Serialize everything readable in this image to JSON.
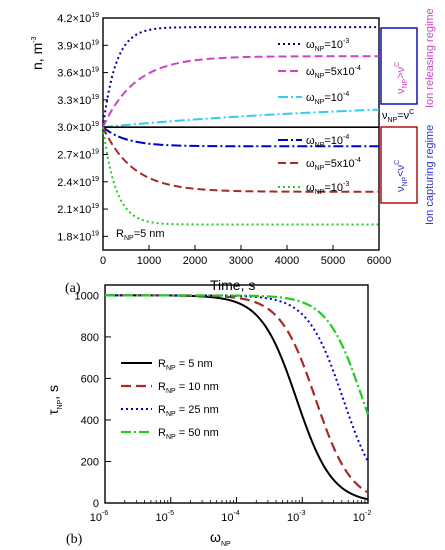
{
  "panel_labels": {
    "a": "(a)",
    "b": "(b)"
  },
  "colors": {
    "black": "#000000",
    "navy": "#00008b",
    "magenta": "#cc44cc",
    "cyan": "#33ccee",
    "blue": "#0000cc",
    "brown": "#a52a2a",
    "green": "#22cc22",
    "releasing": "#cc44cc",
    "capturing": "#3333cc",
    "box_navy": "#0000aa",
    "box_red": "#aa0000"
  },
  "regimes": {
    "releasing_text": "Ion releasing regime",
    "capturing_text": "Ion capturing regime",
    "cond_main": "ν",
    "cond_sub": "NP",
    "cond_greater": ">",
    "cond_less": "<",
    "cond_equal": "=",
    "cond_rhs": "ν",
    "cond_rhs_sup": "C"
  },
  "panel_a_text": {
    "ylabel_main": "n, m",
    "ylabel_sup": "-3",
    "xlabel": "Time, s",
    "ytick_base": "×10",
    "ytick_exp": "19",
    "rnp_main": "R",
    "rnp_sub": "NP",
    "rnp_rest": "=5 nm",
    "leg_w": "ω",
    "leg_w_sub": "NP",
    "leg_eq_values": [
      "=10",
      "=5x10",
      "=10",
      "=10",
      "=5x10",
      "=10"
    ],
    "leg_eq_exps": [
      "-3",
      "-4",
      "-4",
      "-4",
      "-4",
      "-3"
    ]
  },
  "panel_b_text": {
    "ylabel_main": "τ",
    "ylabel_sub": "NP",
    "ylabel_rest": ", s",
    "xlabel_main": "ω",
    "xlabel_sub": "NP",
    "xtick_base": "10",
    "legend": [
      {
        "main": "R",
        "sub": "NP",
        "rest": " = 5 nm"
      },
      {
        "main": "R",
        "sub": "NP",
        "rest": " = 10 nm"
      },
      {
        "main": "R",
        "sub": "NP",
        "rest": " = 25 nm"
      },
      {
        "main": "R",
        "sub": "NP",
        "rest": " = 50 nm"
      }
    ]
  },
  "chart_data": [
    {
      "type": "line",
      "xlabel": "Time, s",
      "ylabel": "n, m^-3",
      "xlim": [
        0,
        6000
      ],
      "ylim": [
        1.65e+19,
        4.2e+19
      ],
      "xticks": [
        0,
        1000,
        2000,
        3000,
        4000,
        5000,
        6000
      ],
      "yticks": [
        "1.8",
        "2.1",
        "2.4",
        "2.7",
        "3.0",
        "3.3",
        "3.6",
        "3.9",
        "4.2"
      ],
      "annotation": "R_NP=5 nm",
      "series": [
        {
          "name": "ω_NP=10^-3 (releasing)",
          "initial": 3e+19,
          "final": 4.1e+19,
          "tau": 280
        },
        {
          "name": "ω_NP=5x10^-4 (releasing)",
          "initial": 3e+19,
          "final": 3.78e+19,
          "tau": 700
        },
        {
          "name": "ω_NP=10^-4 (releasing)",
          "initial": 3e+19,
          "final": 3.32e+19,
          "tau": 6500
        },
        {
          "name": "reference ν_NP=ν^C",
          "initial": 3e+19,
          "final": 3e+19,
          "tau": 1
        },
        {
          "name": "ω_NP=10^-4 (capturing)",
          "initial": 3e+19,
          "final": 2.79e+19,
          "tau": 500
        },
        {
          "name": "ω_NP=5x10^-4 (capturing)",
          "initial": 3e+19,
          "final": 2.29e+19,
          "tau": 650
        },
        {
          "name": "ω_NP=10^-3 (capturing)",
          "initial": 3e+19,
          "final": 1.93e+19,
          "tau": 280
        }
      ]
    },
    {
      "type": "line",
      "xlabel": "ω_NP",
      "ylabel": "τ_NP, s",
      "xscale": "log",
      "xlim": [
        1e-06,
        0.01
      ],
      "ylim": [
        0,
        1050
      ],
      "xticks": [
        "-6",
        "-5",
        "-4",
        "-3",
        "-2"
      ],
      "yticks": [
        0,
        200,
        400,
        600,
        800,
        1000
      ],
      "series": [
        {
          "name": "R_NP = 5 nm",
          "tau0": 1000,
          "half": 0.00082
        },
        {
          "name": "R_NP = 10 nm",
          "tau0": 1000,
          "half": 0.0016
        },
        {
          "name": "R_NP = 25 nm",
          "tau0": 1000,
          "half": 0.0042
        },
        {
          "name": "R_NP = 50 nm",
          "tau0": 1000,
          "half": 0.0083
        }
      ]
    }
  ]
}
